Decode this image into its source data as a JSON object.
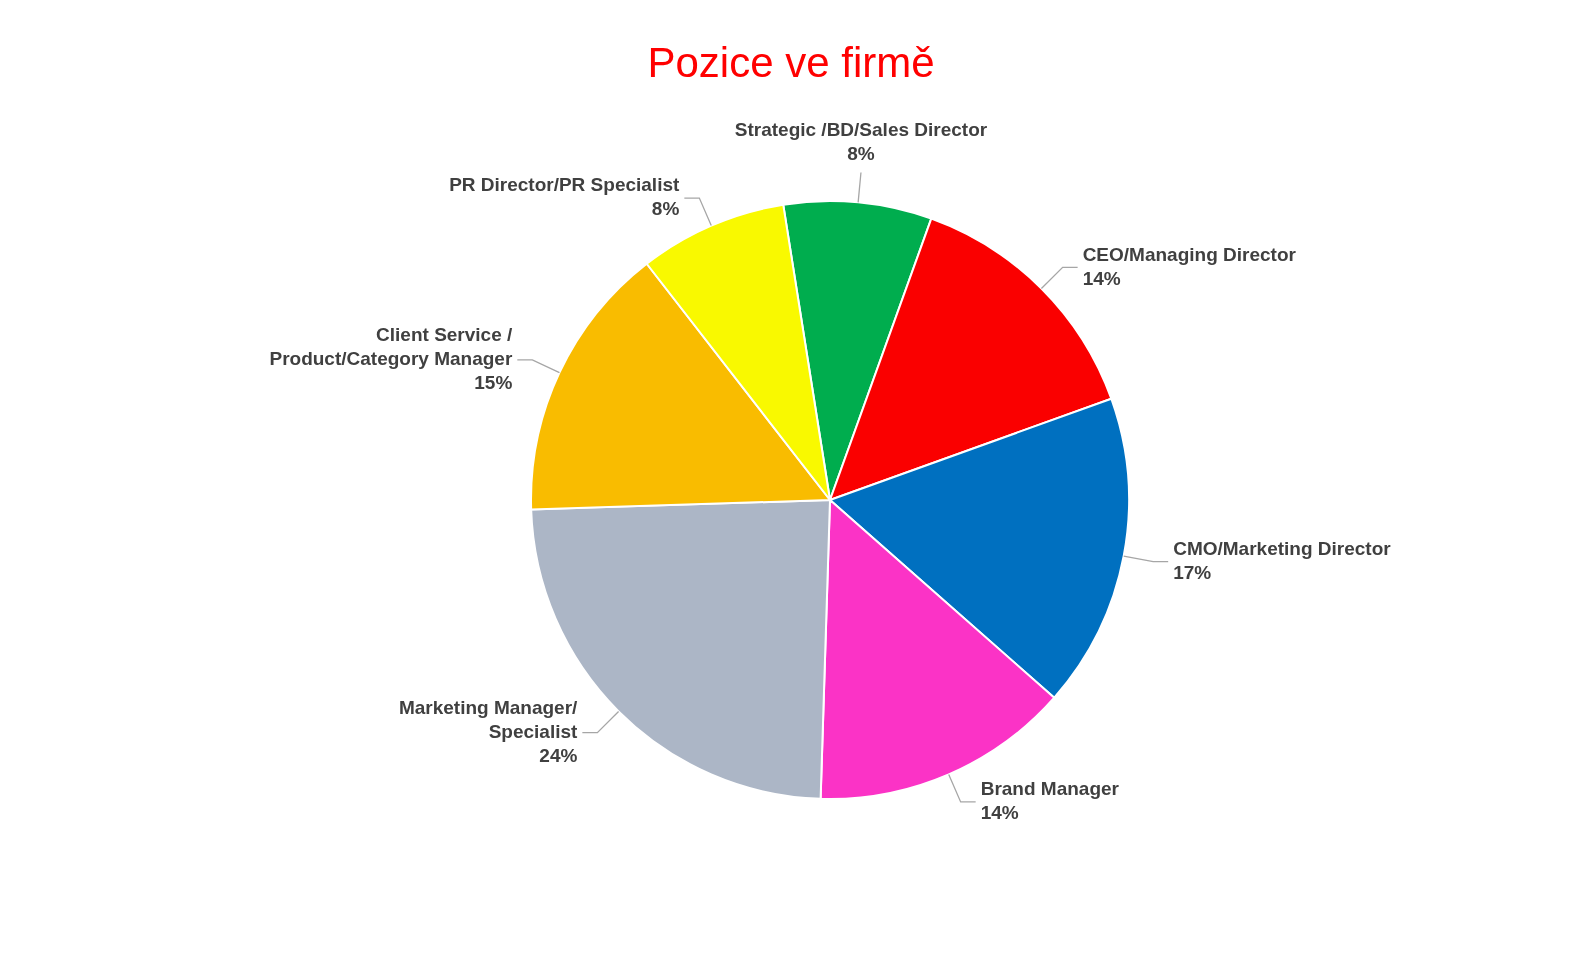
{
  "chart_data": {
    "type": "pie",
    "title": "Pozice ve firmě",
    "categories": [
      "Strategic /BD/Sales Director",
      "CEO/Managing Director",
      "CMO/Marketing Director",
      "Brand Manager",
      "Marketing Manager/ Specialist",
      "Client Service / Product/Category Manager",
      "PR Director/PR Specialist"
    ],
    "values": [
      8,
      14,
      17,
      14,
      24,
      15,
      8
    ],
    "value_labels": [
      "8%",
      "14%",
      "17%",
      "14%",
      "24%",
      "15%",
      "8%"
    ],
    "colors": [
      "#00ad4e",
      "#fa0000",
      "#0070c0",
      "#fb33c6",
      "#acb6c6",
      "#f9bc00",
      "#f9f900"
    ]
  }
}
